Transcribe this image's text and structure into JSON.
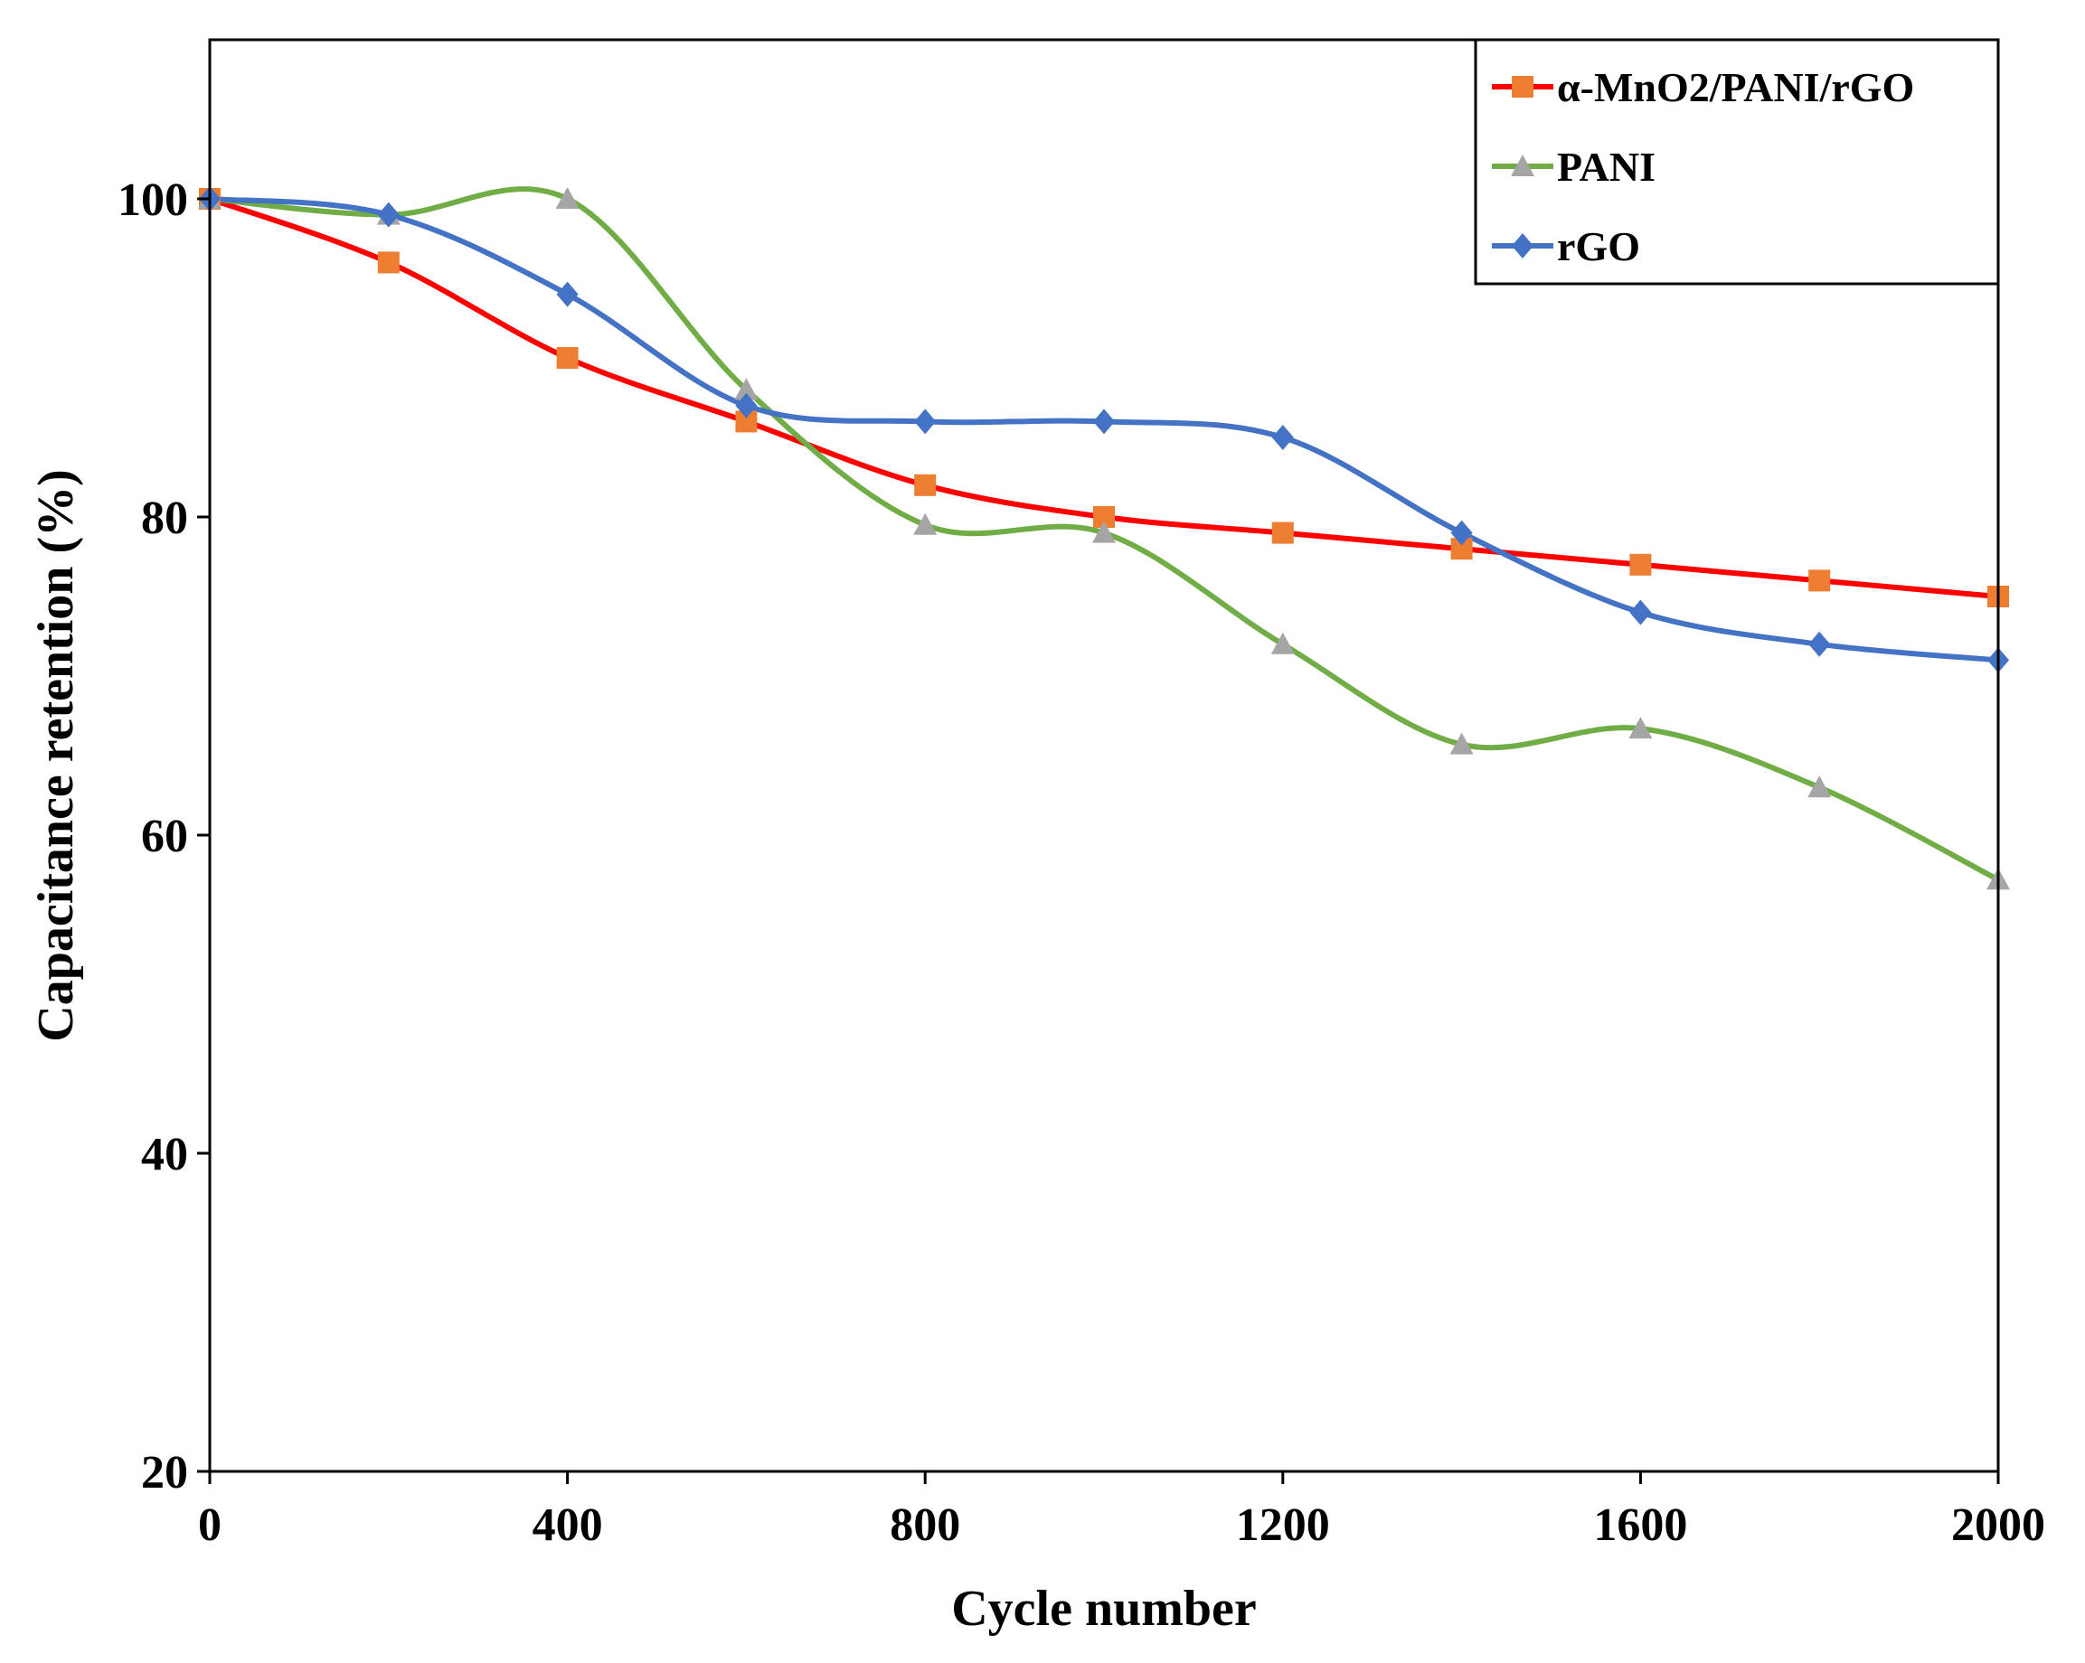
{
  "chart_data": {
    "type": "line",
    "title": "",
    "xlabel": "Cycle number",
    "ylabel": "Capacitance retention (%)",
    "xlim": [
      0,
      2000
    ],
    "ylim": [
      20,
      110
    ],
    "xticks": [
      0,
      400,
      800,
      1200,
      1600,
      2000
    ],
    "yticks": [
      20,
      40,
      60,
      80,
      100
    ],
    "x": [
      0,
      200,
      400,
      600,
      800,
      1000,
      1200,
      1400,
      1600,
      1800,
      2000
    ],
    "grid": false,
    "legend_position": "top-right",
    "series": [
      {
        "name": "α-MnO2/PANI/rGO",
        "line_color": "#ff0000",
        "marker_color": "#ed7d31",
        "marker": "square",
        "values": [
          100,
          96,
          90,
          86,
          82,
          80,
          79,
          78,
          77,
          76,
          75
        ]
      },
      {
        "name": "PANI",
        "line_color": "#70ad47",
        "marker_color": "#a5a5a5",
        "marker": "triangle",
        "values": [
          100,
          99,
          100,
          88,
          79.5,
          79,
          72,
          65.7,
          66.7,
          63,
          57.2
        ]
      },
      {
        "name": "rGO",
        "line_color": "#4472c4",
        "marker_color": "#4472c4",
        "marker": "diamond",
        "values": [
          100,
          99,
          94,
          87,
          86,
          86,
          85,
          79,
          74,
          72,
          71
        ]
      }
    ]
  }
}
